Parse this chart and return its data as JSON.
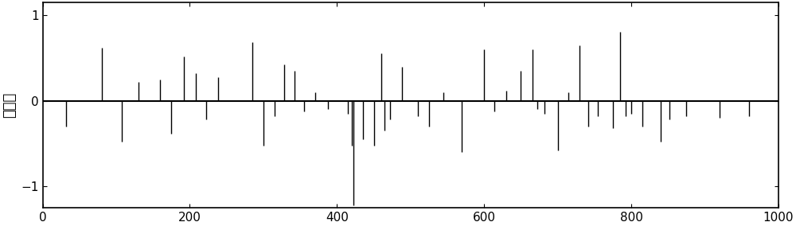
{
  "title": "",
  "ylabel": "幅値ａ",
  "xlabel": "",
  "xlim": [
    0,
    1000
  ],
  "ylim": [
    -1.25,
    1.15
  ],
  "yticks": [
    -1,
    0,
    1
  ],
  "xticks": [
    0,
    200,
    400,
    600,
    800,
    1000
  ],
  "figsize": [
    10.0,
    2.84
  ],
  "dpi": 100,
  "background_color": "#ffffff",
  "line_color": "#000000",
  "spikes": [
    [
      32,
      -0.3
    ],
    [
      80,
      0.62
    ],
    [
      108,
      -0.48
    ],
    [
      130,
      0.22
    ],
    [
      160,
      0.25
    ],
    [
      175,
      -0.38
    ],
    [
      192,
      0.52
    ],
    [
      208,
      0.32
    ],
    [
      222,
      -0.22
    ],
    [
      238,
      0.28
    ],
    [
      285,
      0.68
    ],
    [
      300,
      -0.52
    ],
    [
      315,
      -0.18
    ],
    [
      328,
      0.42
    ],
    [
      342,
      0.35
    ],
    [
      355,
      -0.12
    ],
    [
      370,
      0.1
    ],
    [
      388,
      -0.1
    ],
    [
      415,
      -0.15
    ],
    [
      420,
      -0.52
    ],
    [
      422,
      -1.22
    ],
    [
      435,
      -0.45
    ],
    [
      450,
      -0.52
    ],
    [
      460,
      0.55
    ],
    [
      465,
      -0.35
    ],
    [
      472,
      -0.22
    ],
    [
      488,
      0.4
    ],
    [
      510,
      -0.18
    ],
    [
      525,
      -0.3
    ],
    [
      545,
      0.1
    ],
    [
      570,
      -0.6
    ],
    [
      600,
      0.6
    ],
    [
      614,
      -0.12
    ],
    [
      630,
      0.12
    ],
    [
      650,
      0.35
    ],
    [
      666,
      0.6
    ],
    [
      672,
      -0.1
    ],
    [
      682,
      -0.15
    ],
    [
      700,
      -0.58
    ],
    [
      714,
      0.1
    ],
    [
      730,
      0.65
    ],
    [
      742,
      -0.3
    ],
    [
      755,
      -0.18
    ],
    [
      775,
      -0.32
    ],
    [
      785,
      0.8
    ],
    [
      792,
      -0.18
    ],
    [
      800,
      -0.15
    ],
    [
      815,
      -0.3
    ],
    [
      840,
      -0.48
    ],
    [
      852,
      -0.22
    ],
    [
      875,
      -0.18
    ],
    [
      920,
      -0.2
    ],
    [
      960,
      -0.18
    ]
  ]
}
